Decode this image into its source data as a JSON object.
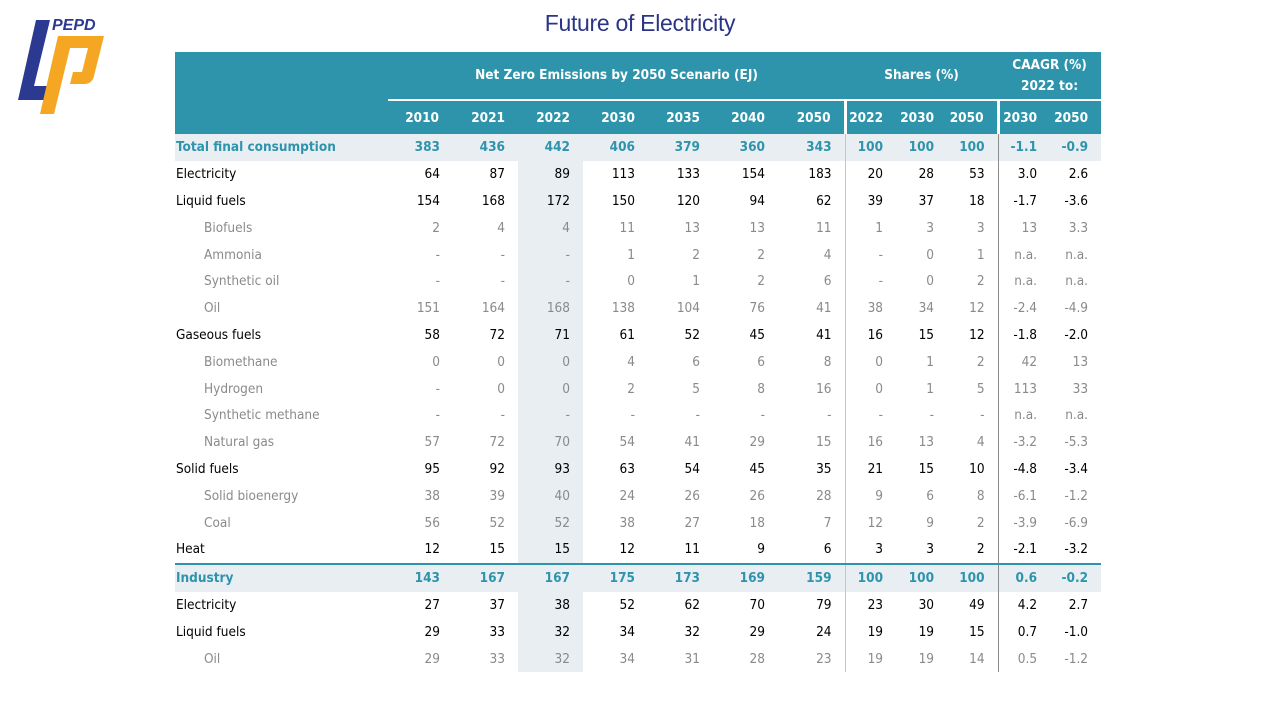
{
  "logo": {
    "text": "PEPD",
    "colors": {
      "blue": "#2b3a90",
      "orange": "#f5a623"
    }
  },
  "title": "Future of Electricity",
  "colors": {
    "header": "#2e94ab",
    "title": "#2b3585",
    "highlight_bg": "#e9eef3"
  },
  "table": {
    "group_headers": {
      "ej": "Net Zero Emissions by 2050 Scenario (EJ)",
      "shares": "Shares (%)",
      "caagr_line1": "CAAGR (%)",
      "caagr_line2": "2022 to:"
    },
    "columns": [
      "2010",
      "2021",
      "2022",
      "2030",
      "2035",
      "2040",
      "2050",
      "2022",
      "2030",
      "2050",
      "2030",
      "2050"
    ],
    "rows": [
      {
        "type": "total",
        "label": "Total final consumption",
        "values": [
          "383",
          "436",
          "442",
          "406",
          "379",
          "360",
          "343",
          "100",
          "100",
          "100",
          "-1.1",
          "-0.9"
        ]
      },
      {
        "type": "main",
        "label": "Electricity",
        "values": [
          "64",
          "87",
          "89",
          "113",
          "133",
          "154",
          "183",
          "20",
          "28",
          "53",
          "3.0",
          "2.6"
        ]
      },
      {
        "type": "main",
        "label": "Liquid fuels",
        "values": [
          "154",
          "168",
          "172",
          "150",
          "120",
          "94",
          "62",
          "39",
          "37",
          "18",
          "-1.7",
          "-3.6"
        ]
      },
      {
        "type": "sub",
        "label": "Biofuels",
        "values": [
          "2",
          "4",
          "4",
          "11",
          "13",
          "13",
          "11",
          "1",
          "3",
          "3",
          "13",
          "3.3"
        ]
      },
      {
        "type": "sub",
        "label": "Ammonia",
        "values": [
          "-",
          "-",
          "-",
          "1",
          "2",
          "2",
          "4",
          "-",
          "0",
          "1",
          "n.a.",
          "n.a."
        ]
      },
      {
        "type": "sub",
        "label": "Synthetic oil",
        "values": [
          "-",
          "-",
          "-",
          "0",
          "1",
          "2",
          "6",
          "-",
          "0",
          "2",
          "n.a.",
          "n.a."
        ]
      },
      {
        "type": "sub",
        "label": "Oil",
        "values": [
          "151",
          "164",
          "168",
          "138",
          "104",
          "76",
          "41",
          "38",
          "34",
          "12",
          "-2.4",
          "-4.9"
        ]
      },
      {
        "type": "main",
        "label": "Gaseous fuels",
        "values": [
          "58",
          "72",
          "71",
          "61",
          "52",
          "45",
          "41",
          "16",
          "15",
          "12",
          "-1.8",
          "-2.0"
        ]
      },
      {
        "type": "sub",
        "label": "Biomethane",
        "values": [
          "0",
          "0",
          "0",
          "4",
          "6",
          "6",
          "8",
          "0",
          "1",
          "2",
          "42",
          "13"
        ]
      },
      {
        "type": "sub",
        "label": "Hydrogen",
        "values": [
          "-",
          "0",
          "0",
          "2",
          "5",
          "8",
          "16",
          "0",
          "1",
          "5",
          "113",
          "33"
        ]
      },
      {
        "type": "sub",
        "label": "Synthetic methane",
        "values": [
          "-",
          "-",
          "-",
          "-",
          "-",
          "-",
          "-",
          "-",
          "-",
          "-",
          "n.a.",
          "n.a."
        ]
      },
      {
        "type": "sub",
        "label": "Natural gas",
        "values": [
          "57",
          "72",
          "70",
          "54",
          "41",
          "29",
          "15",
          "16",
          "13",
          "4",
          "-3.2",
          "-5.3"
        ]
      },
      {
        "type": "main",
        "label": "Solid fuels",
        "values": [
          "95",
          "92",
          "93",
          "63",
          "54",
          "45",
          "35",
          "21",
          "15",
          "10",
          "-4.8",
          "-3.4"
        ]
      },
      {
        "type": "sub",
        "label": "Solid bioenergy",
        "values": [
          "38",
          "39",
          "40",
          "24",
          "26",
          "26",
          "28",
          "9",
          "6",
          "8",
          "-6.1",
          "-1.2"
        ]
      },
      {
        "type": "sub",
        "label": "Coal",
        "values": [
          "56",
          "52",
          "52",
          "38",
          "27",
          "18",
          "7",
          "12",
          "9",
          "2",
          "-3.9",
          "-6.9"
        ]
      },
      {
        "type": "main",
        "label": "Heat",
        "values": [
          "12",
          "15",
          "15",
          "12",
          "11",
          "9",
          "6",
          "3",
          "3",
          "2",
          "-2.1",
          "-3.2"
        ]
      },
      {
        "type": "total",
        "label": "Industry",
        "values": [
          "143",
          "167",
          "167",
          "175",
          "173",
          "169",
          "159",
          "100",
          "100",
          "100",
          "0.6",
          "-0.2"
        ]
      },
      {
        "type": "main",
        "label": "Electricity",
        "values": [
          "27",
          "37",
          "38",
          "52",
          "62",
          "70",
          "79",
          "23",
          "30",
          "49",
          "4.2",
          "2.7"
        ]
      },
      {
        "type": "main",
        "label": "Liquid fuels",
        "values": [
          "29",
          "33",
          "32",
          "34",
          "32",
          "29",
          "24",
          "19",
          "19",
          "15",
          "0.7",
          "-1.0"
        ]
      },
      {
        "type": "sub",
        "label": "Oil",
        "values": [
          "29",
          "33",
          "32",
          "34",
          "31",
          "28",
          "23",
          "19",
          "19",
          "14",
          "0.5",
          "-1.2"
        ]
      }
    ]
  }
}
